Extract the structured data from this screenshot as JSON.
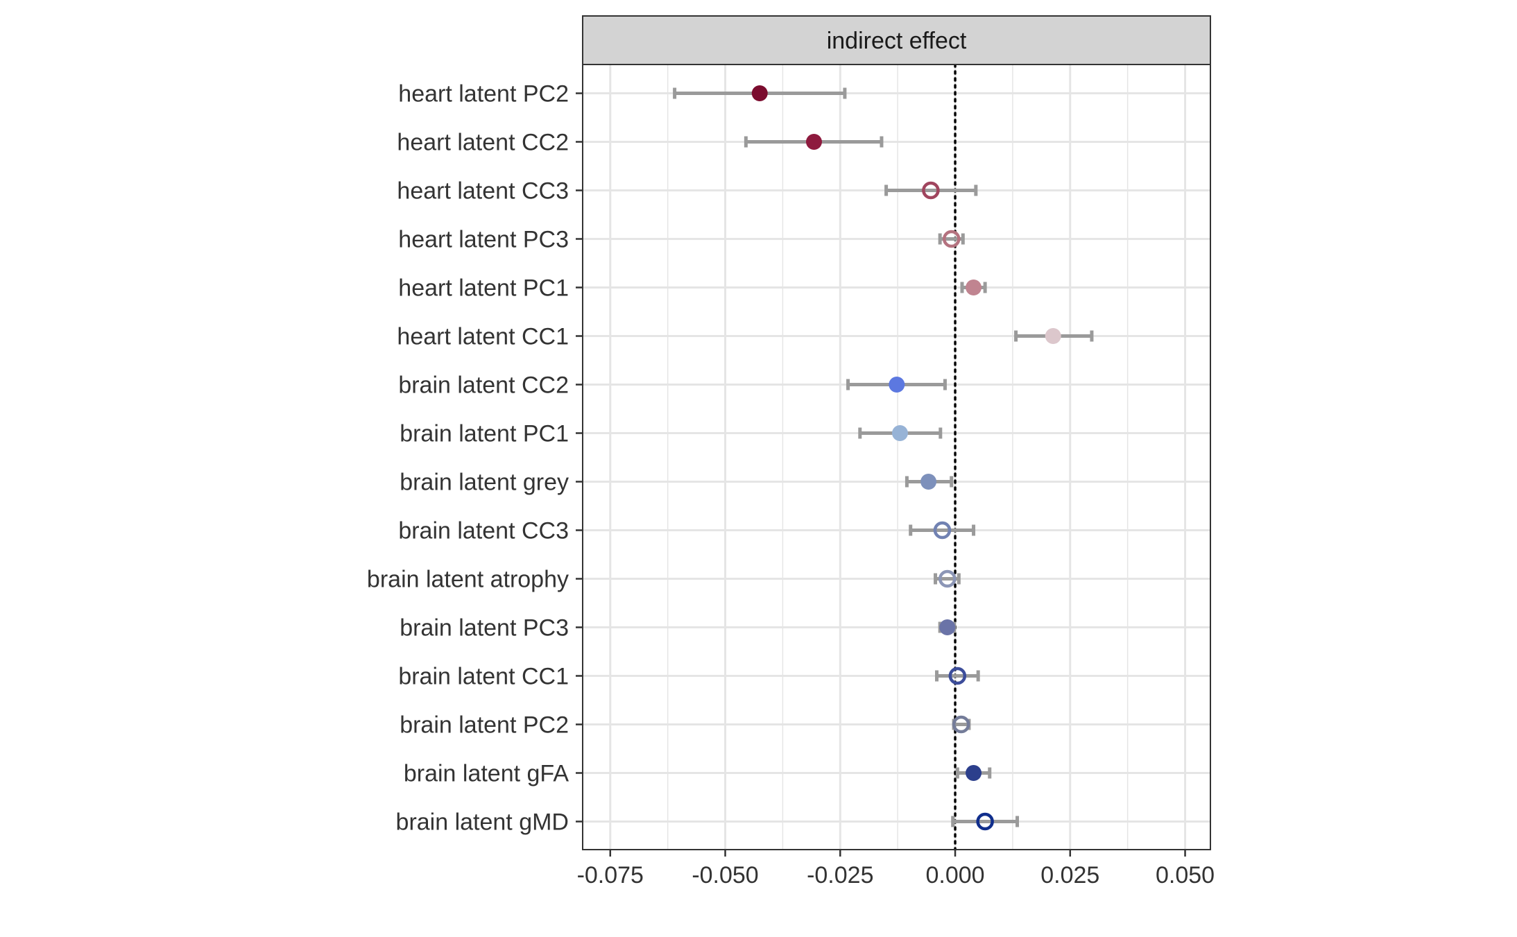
{
  "chart_data": {
    "type": "forest",
    "facet_title": "indirect effect",
    "xlim": [
      -0.081,
      0.0555
    ],
    "x_ticks": [
      -0.075,
      -0.05,
      -0.025,
      0.0,
      0.025,
      0.05
    ],
    "x_tick_labels": [
      "-0.075",
      "-0.050",
      "-0.025",
      "0.000",
      "0.025",
      "0.050"
    ],
    "reference_line": 0.0,
    "grid": true,
    "rows": [
      {
        "label": "heart latent PC2",
        "estimate": -0.0425,
        "lower": -0.061,
        "upper": -0.024,
        "filled": true,
        "color": "#7b0c2e"
      },
      {
        "label": "heart latent CC2",
        "estimate": -0.0307,
        "lower": -0.0455,
        "upper": -0.016,
        "filled": true,
        "color": "#8e1a3e"
      },
      {
        "label": "heart latent CC3",
        "estimate": -0.0053,
        "lower": -0.015,
        "upper": 0.0045,
        "filled": false,
        "color": "#a0455e"
      },
      {
        "label": "heart latent PC3",
        "estimate": -0.0008,
        "lower": -0.0033,
        "upper": 0.0017,
        "filled": false,
        "color": "#b4727f"
      },
      {
        "label": "heart latent PC1",
        "estimate": 0.004,
        "lower": 0.0015,
        "upper": 0.0065,
        "filled": true,
        "color": "#c08490"
      },
      {
        "label": "heart latent CC1",
        "estimate": 0.0213,
        "lower": 0.0132,
        "upper": 0.0297,
        "filled": true,
        "color": "#dcc7cc"
      },
      {
        "label": "brain latent CC2",
        "estimate": -0.0127,
        "lower": -0.0233,
        "upper": -0.0022,
        "filled": true,
        "color": "#5c78e0"
      },
      {
        "label": "brain latent PC1",
        "estimate": -0.012,
        "lower": -0.0207,
        "upper": -0.0032,
        "filled": true,
        "color": "#97b3d6"
      },
      {
        "label": "brain latent grey",
        "estimate": -0.0058,
        "lower": -0.0105,
        "upper": -0.0008,
        "filled": true,
        "color": "#7d90bb"
      },
      {
        "label": "brain latent CC3",
        "estimate": -0.0028,
        "lower": -0.0097,
        "upper": 0.004,
        "filled": false,
        "color": "#7182b2"
      },
      {
        "label": "brain latent atrophy",
        "estimate": -0.0017,
        "lower": -0.0043,
        "upper": 0.0008,
        "filled": false,
        "color": "#8c96b6"
      },
      {
        "label": "brain latent PC3",
        "estimate": -0.0017,
        "lower": -0.0033,
        "upper": -0.0002,
        "filled": true,
        "color": "#6a73a7"
      },
      {
        "label": "brain latent CC1",
        "estimate": 0.0005,
        "lower": -0.004,
        "upper": 0.005,
        "filled": false,
        "color": "#3c4d9a"
      },
      {
        "label": "brain latent PC2",
        "estimate": 0.0013,
        "lower": -0.0003,
        "upper": 0.003,
        "filled": false,
        "color": "#747c99"
      },
      {
        "label": "brain latent gFA",
        "estimate": 0.004,
        "lower": 0.0005,
        "upper": 0.0075,
        "filled": true,
        "color": "#2c3f8c"
      },
      {
        "label": "brain latent gMD",
        "estimate": 0.0065,
        "lower": -0.0005,
        "upper": 0.0135,
        "filled": false,
        "color": "#102e8c"
      }
    ],
    "colors": {
      "panel_border": "#333333",
      "strip_fill": "#d3d3d3",
      "grid_major": "#e5e5e5",
      "grid_minor": "#f0f0f0",
      "errorbar": "#9a9a9a",
      "text": "#333333",
      "reference_line": "#000000"
    }
  }
}
